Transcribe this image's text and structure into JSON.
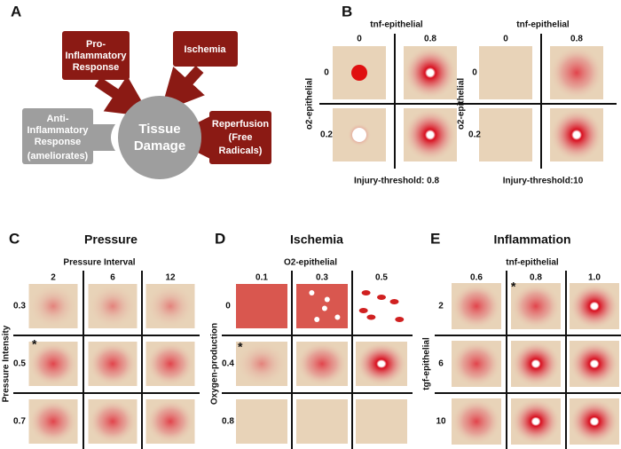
{
  "panel_a": {
    "label": "A",
    "pro_inflammatory": [
      "Pro-",
      "Inflammatory",
      "Response"
    ],
    "ischemia": "Ischemia",
    "anti_inflammatory": [
      "Anti-",
      "Inflammatory",
      "Response"
    ],
    "ameliorates": "(ameliorates)",
    "tissue_damage": [
      "Tissue",
      "Damage"
    ],
    "reperfusion": [
      "Reperfusion",
      "(Free",
      "Radicals)"
    ]
  },
  "panel_b": {
    "label": "B",
    "grids": [
      {
        "column_axis": "tnf-epithelial",
        "columns": [
          "0",
          "0.8"
        ],
        "row_axis": "o2-epithelial",
        "rows": [
          "0",
          "0.2"
        ],
        "caption": "Injury-threshold: 0.8"
      },
      {
        "column_axis": "tnf-epithelial",
        "columns": [
          "0",
          "0.8"
        ],
        "row_axis": "o2-epithelial",
        "rows": [
          "0",
          "0.2"
        ],
        "caption": "Injury-threshold:10"
      }
    ]
  },
  "panel_c": {
    "label": "C",
    "title": "Pressure",
    "column_axis": "Pressure Interval",
    "columns": [
      "2",
      "6",
      "12"
    ],
    "row_axis": "Pressure Intensity",
    "rows": [
      "0.3",
      "0.5",
      "0.7"
    ],
    "asterisk": "*"
  },
  "panel_d": {
    "label": "D",
    "title": "Ischemia",
    "column_axis": "O2-epithelial",
    "columns": [
      "0.1",
      "0.3",
      "0.5"
    ],
    "row_axis": "Oxygen-production",
    "rows": [
      "0",
      "0.4",
      "0.8"
    ],
    "asterisk": "*"
  },
  "panel_e": {
    "label": "E",
    "title": "Inflammation",
    "column_axis": "tnf-epithelial",
    "columns": [
      "0.6",
      "0.8",
      "1.0"
    ],
    "row_axis": "tgf-epithelial",
    "rows": [
      "2",
      "6",
      "10"
    ],
    "asterisk": "*"
  }
}
